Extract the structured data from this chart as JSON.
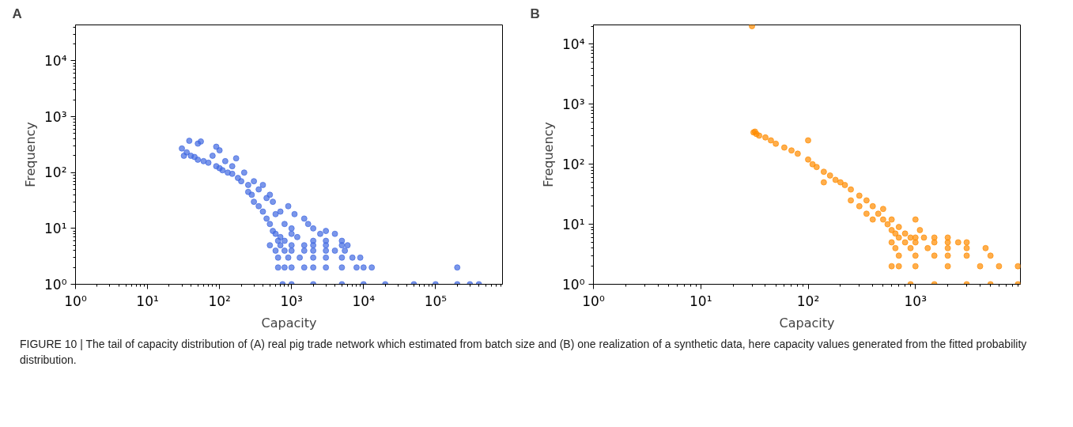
{
  "chart_data": [
    {
      "type": "scatter",
      "title": "A",
      "xlabel": "Capacity",
      "ylabel": "Frequency",
      "log": "xy",
      "marker": "circle",
      "grid": false,
      "xlim": [
        1,
        850000
      ],
      "ylim": [
        1,
        44000
      ],
      "xticks": [
        {
          "value": 1,
          "label": "10⁰"
        },
        {
          "value": 10,
          "label": "10¹"
        },
        {
          "value": 100,
          "label": "10²"
        },
        {
          "value": 1000,
          "label": "10³"
        },
        {
          "value": 10000,
          "label": "10⁴"
        },
        {
          "value": 100000,
          "label": "10⁵"
        }
      ],
      "yticks": [
        {
          "value": 1,
          "label": "10⁰"
        },
        {
          "value": 10,
          "label": "10¹"
        },
        {
          "value": 100,
          "label": "10²"
        },
        {
          "value": 1000,
          "label": "10³"
        },
        {
          "value": 10000,
          "label": "10⁴"
        }
      ],
      "series": [
        {
          "color": "#4169e1",
          "x": [
            30,
            32,
            35,
            38,
            40,
            45,
            50,
            55,
            50,
            60,
            70,
            80,
            90,
            100,
            90,
            100,
            110,
            120,
            130,
            150,
            170,
            150,
            180,
            200,
            220,
            250,
            250,
            280,
            300,
            300,
            350,
            350,
            400,
            400,
            450,
            450,
            500,
            500,
            550,
            550,
            600,
            600,
            650,
            700,
            700,
            800,
            800,
            900,
            1000,
            1000,
            1100,
            1200,
            1500,
            1700,
            2000,
            2500,
            3000,
            4000,
            5000,
            3000,
            2000,
            500,
            700,
            1000,
            1500,
            2000,
            3000,
            5000,
            6000,
            600,
            800,
            1000,
            1500,
            2000,
            3000,
            4000,
            5500,
            650,
            900,
            1300,
            2000,
            3000,
            5000,
            7000,
            9000,
            650,
            800,
            1000,
            1500,
            2000,
            3000,
            5000,
            8000,
            10000,
            13000,
            750,
            1000,
            2000,
            5000,
            10000,
            20000,
            50000,
            100000,
            200000,
            300000,
            400000,
            200000
          ],
          "values": [
            270,
            200,
            230,
            370,
            200,
            190,
            330,
            360,
            170,
            160,
            150,
            200,
            290,
            250,
            130,
            120,
            110,
            160,
            100,
            95,
            180,
            130,
            80,
            70,
            100,
            60,
            45,
            40,
            30,
            70,
            25,
            50,
            20,
            60,
            15,
            35,
            12,
            40,
            30,
            9,
            8,
            18,
            6,
            7,
            20,
            12,
            6,
            25,
            8,
            10,
            18,
            7,
            15,
            12,
            10,
            8,
            9,
            8,
            6,
            6,
            6,
            5,
            5,
            5,
            5,
            5,
            5,
            5,
            5,
            4,
            4,
            4,
            4,
            4,
            4,
            4,
            4,
            3,
            3,
            3,
            3,
            3,
            3,
            3,
            3,
            2,
            2,
            2,
            2,
            2,
            2,
            2,
            2,
            2,
            2,
            1,
            1,
            1,
            1,
            1,
            1,
            1,
            1,
            1,
            1,
            1,
            2
          ]
        }
      ]
    },
    {
      "type": "scatter",
      "title": "B",
      "xlabel": "Capacity",
      "ylabel": "Frequency",
      "log": "xy",
      "marker": "circle",
      "grid": false,
      "xlim": [
        1,
        9500
      ],
      "ylim": [
        1,
        21000
      ],
      "xticks": [
        {
          "value": 1,
          "label": "10⁰"
        },
        {
          "value": 10,
          "label": "10¹"
        },
        {
          "value": 100,
          "label": "10²"
        },
        {
          "value": 1000,
          "label": "10³"
        }
      ],
      "yticks": [
        {
          "value": 1,
          "label": "10⁰"
        },
        {
          "value": 10,
          "label": "10¹"
        },
        {
          "value": 100,
          "label": "10²"
        },
        {
          "value": 1000,
          "label": "10³"
        },
        {
          "value": 10000,
          "label": "10⁴"
        }
      ],
      "annotations": [
        "FIGURE 10 | The tail of capacity distribution of (A) real pig trade network which estimated from batch size and (B) one realization of a synthetic data, here capacity values generated from the fitted probability distribution."
      ],
      "series": [
        {
          "color": "#ff8c00",
          "x": [
            31,
            32,
            33,
            35,
            40,
            45,
            50,
            60,
            70,
            80,
            100,
            100,
            110,
            120,
            140,
            160,
            180,
            140,
            200,
            220,
            250,
            250,
            300,
            300,
            350,
            350,
            400,
            400,
            450,
            500,
            500,
            550,
            600,
            600,
            650,
            700,
            700,
            800,
            900,
            1000,
            1100,
            1000,
            1200,
            1500,
            2000,
            2500,
            30,
            600,
            800,
            1000,
            1500,
            2000,
            3000,
            650,
            900,
            1300,
            2000,
            3000,
            4500,
            700,
            1000,
            1500,
            2000,
            3000,
            5000,
            600,
            700,
            1000,
            2000,
            4000,
            6000,
            9000,
            900,
            1500,
            3000,
            5000,
            9000
          ],
          "values": [
            340,
            350,
            320,
            300,
            280,
            250,
            220,
            190,
            170,
            150,
            120,
            250,
            100,
            90,
            75,
            65,
            55,
            50,
            50,
            45,
            38,
            25,
            30,
            20,
            25,
            15,
            20,
            12,
            15,
            12,
            18,
            10,
            12,
            8,
            7,
            9,
            6,
            7,
            6,
            12,
            8,
            6,
            6,
            6,
            6,
            5,
            20000,
            5,
            5,
            5,
            5,
            5,
            5,
            4,
            4,
            4,
            4,
            4,
            4,
            3,
            3,
            3,
            3,
            3,
            3,
            2,
            2,
            2,
            2,
            2,
            2,
            2,
            1,
            1,
            1,
            1,
            1
          ]
        }
      ]
    }
  ]
}
